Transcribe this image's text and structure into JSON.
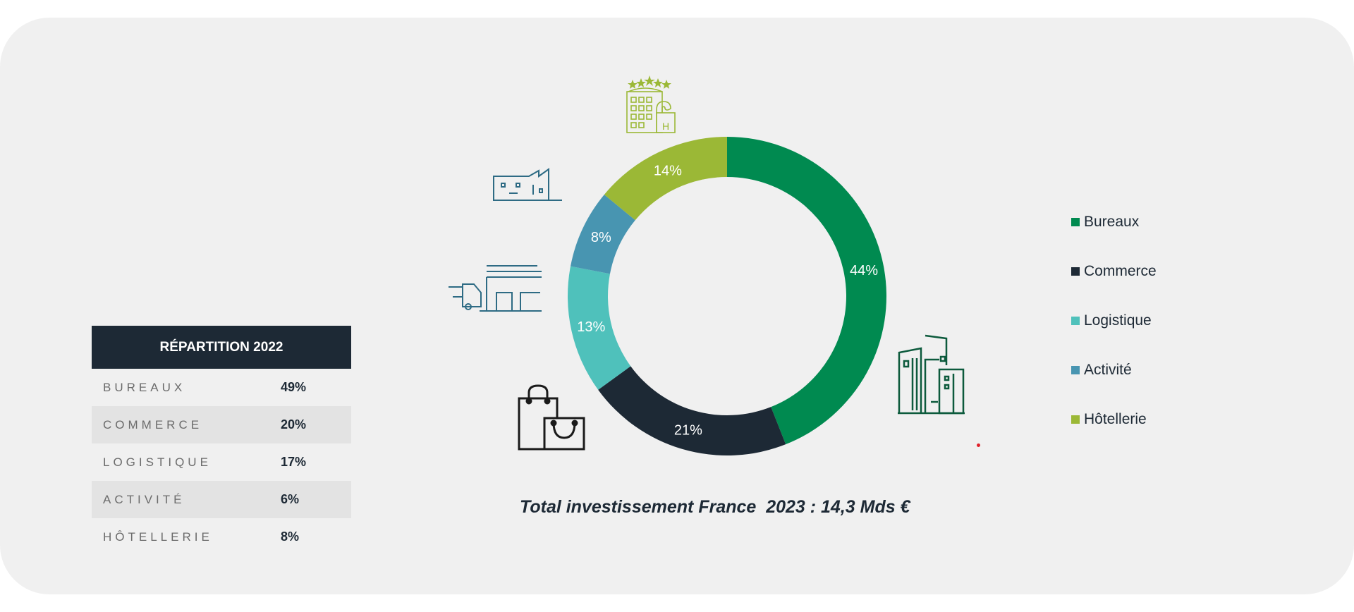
{
  "table": {
    "title": "RÉPARTITION 2022",
    "rows": [
      {
        "label": "BUREAUX",
        "value": "49%"
      },
      {
        "label": "COMMERCE",
        "value": "20%"
      },
      {
        "label": "LOGISTIQUE",
        "value": "17%"
      },
      {
        "label": "ACTIVITÉ",
        "value": "6%"
      },
      {
        "label": "HÔTELLERIE",
        "value": "8%"
      }
    ]
  },
  "chart_data": {
    "type": "pie",
    "subtype": "donut",
    "categories": [
      "Bureaux",
      "Commerce",
      "Logistique",
      "Activité",
      "Hôtellerie"
    ],
    "values": [
      44,
      21,
      13,
      8,
      14
    ],
    "data_labels": [
      "44%",
      "21%",
      "13%",
      "8%",
      "14%"
    ],
    "colors": [
      "#008a50",
      "#1d2935",
      "#4fc1bb",
      "#4895b1",
      "#9bb836"
    ],
    "legend_position": "right",
    "caption": "Total investissement France  2023 : 14,3 Mds €"
  },
  "icons": {
    "bureaux": "office-buildings-icon",
    "commerce": "shopping-bags-icon",
    "logistique": "truck-warehouse-icon",
    "activite": "factory-icon",
    "hotellerie": "hotel-icon"
  }
}
